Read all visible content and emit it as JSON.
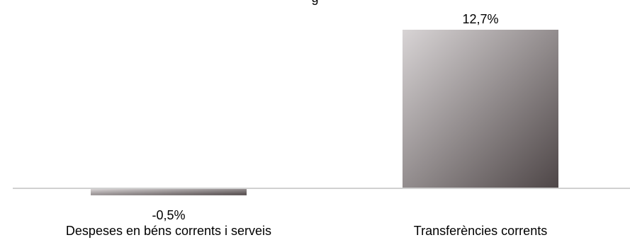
{
  "chart_data": {
    "type": "bar",
    "title": "",
    "title_fragment": "g",
    "categories": [
      "Despeses en béns corrents i serveis",
      "Transferències corrents"
    ],
    "values": [
      -0.5,
      12.7
    ],
    "value_labels": [
      "-0,5%",
      "12,7%"
    ],
    "unit": "%",
    "xlabel": "",
    "ylabel": "",
    "ylim": [
      -0.6,
      12.8
    ],
    "grid": false,
    "legend": "none",
    "colors": {
      "gradient_light": "#d8d4d5",
      "gradient_dark": "#4e4647",
      "axis": "#d0d0d0"
    }
  }
}
